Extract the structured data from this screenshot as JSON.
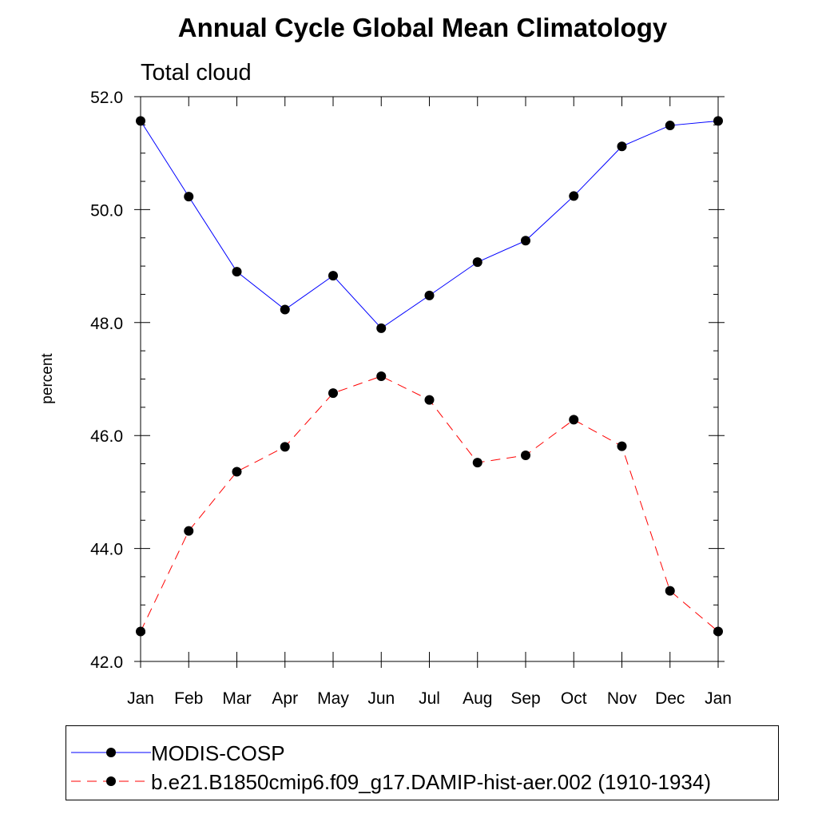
{
  "chart_data": {
    "type": "line",
    "title": "Annual Cycle Global Mean Climatology",
    "subtitle": "Total cloud",
    "xlabel": "",
    "ylabel": "percent",
    "categories": [
      "Jan",
      "Feb",
      "Mar",
      "Apr",
      "May",
      "Jun",
      "Jul",
      "Aug",
      "Sep",
      "Oct",
      "Nov",
      "Dec",
      "Jan"
    ],
    "ylim": [
      42.0,
      52.0
    ],
    "yticks": [
      42.0,
      44.0,
      46.0,
      48.0,
      50.0,
      52.0
    ],
    "ytick_labels": [
      "42.0",
      "44.0",
      "46.0",
      "48.0",
      "50.0",
      "52.0"
    ],
    "grid": false,
    "legend_position": "bottom",
    "series": [
      {
        "name": "MODIS-COSP",
        "color": "#0000ff",
        "line_style": "solid",
        "marker": "filled-circle",
        "values": [
          51.57,
          50.23,
          48.9,
          48.23,
          48.83,
          47.9,
          48.48,
          49.07,
          49.45,
          50.24,
          51.12,
          51.49,
          51.57
        ]
      },
      {
        "name": "b.e21.B1850cmip6.f09_g17.DAMIP-hist-aer.002 (1910-1934)",
        "color": "#ff0000",
        "line_style": "dashed",
        "marker": "filled-circle",
        "values": [
          42.53,
          44.31,
          45.36,
          45.8,
          46.75,
          47.05,
          46.63,
          45.52,
          45.65,
          46.28,
          45.81,
          43.25,
          42.53
        ]
      }
    ]
  }
}
